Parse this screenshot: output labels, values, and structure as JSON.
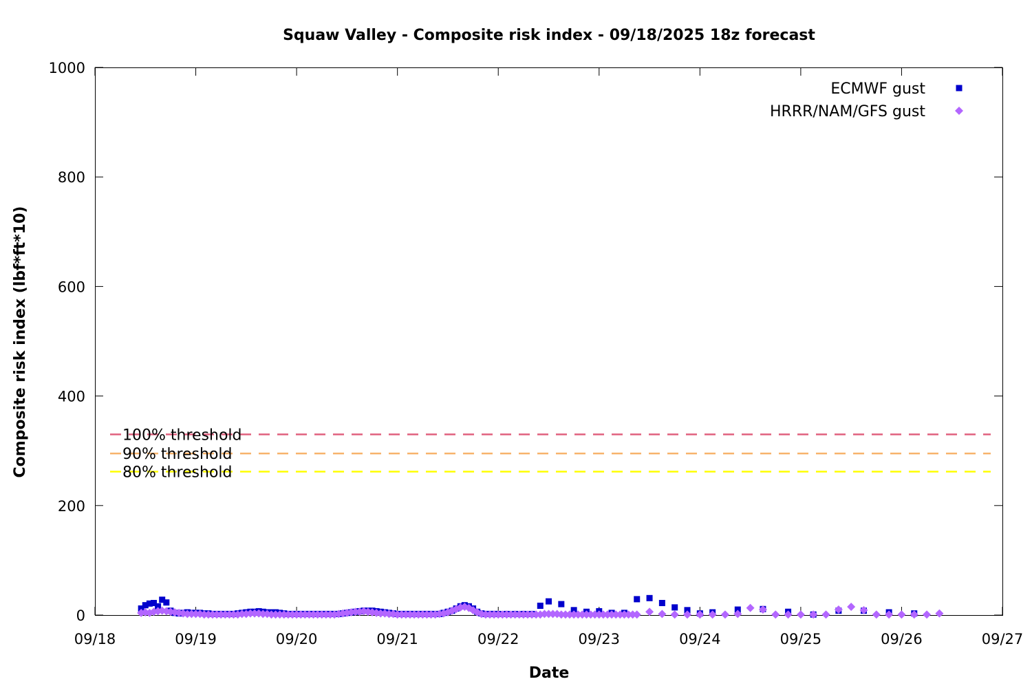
{
  "chart_data": {
    "type": "scatter",
    "title": "Squaw Valley - Composite risk index - 09/18/2025 18z forecast",
    "xlabel": "Date",
    "ylabel": "Composite risk index (lbf*ft*10)",
    "xlim": [
      "2025-09-18",
      "2025-09-27"
    ],
    "ylim": [
      0,
      1000
    ],
    "x_ticks": [
      "09/18",
      "09/19",
      "09/20",
      "09/21",
      "09/22",
      "09/23",
      "09/24",
      "09/25",
      "09/26",
      "09/27"
    ],
    "y_ticks": [
      0,
      200,
      400,
      600,
      800,
      1000
    ],
    "grid": false,
    "legend_position": "top-right",
    "thresholds": [
      {
        "label": "100% threshold",
        "value": 330,
        "color": "#e0607e"
      },
      {
        "label": "90% threshold",
        "value": 295,
        "color": "#f7b36b"
      },
      {
        "label": "80% threshold",
        "value": 262,
        "color": "#ffff00"
      }
    ],
    "series": [
      {
        "name": "ECMWF gust",
        "color": "#0000cc",
        "marker": "square",
        "points": [
          [
            "2025-09-18 11:00",
            12
          ],
          [
            "2025-09-18 12:00",
            18
          ],
          [
            "2025-09-18 13:00",
            21
          ],
          [
            "2025-09-18 14:00",
            22
          ],
          [
            "2025-09-18 15:00",
            16
          ],
          [
            "2025-09-18 16:00",
            28
          ],
          [
            "2025-09-18 17:00",
            23
          ],
          [
            "2025-09-18 18:00",
            8
          ],
          [
            "2025-09-18 19:00",
            4
          ],
          [
            "2025-09-18 20:00",
            3
          ],
          [
            "2025-09-18 21:00",
            4
          ],
          [
            "2025-09-18 22:00",
            5
          ],
          [
            "2025-09-18 23:00",
            4
          ],
          [
            "2025-09-19 00:00",
            4
          ],
          [
            "2025-09-19 01:00",
            4
          ],
          [
            "2025-09-19 02:00",
            3
          ],
          [
            "2025-09-19 03:00",
            3
          ],
          [
            "2025-09-19 04:00",
            2
          ],
          [
            "2025-09-19 05:00",
            2
          ],
          [
            "2025-09-19 06:00",
            2
          ],
          [
            "2025-09-19 07:00",
            2
          ],
          [
            "2025-09-19 08:00",
            2
          ],
          [
            "2025-09-19 09:00",
            2
          ],
          [
            "2025-09-19 10:00",
            3
          ],
          [
            "2025-09-19 11:00",
            4
          ],
          [
            "2025-09-19 12:00",
            5
          ],
          [
            "2025-09-19 13:00",
            6
          ],
          [
            "2025-09-19 14:00",
            6
          ],
          [
            "2025-09-19 15:00",
            7
          ],
          [
            "2025-09-19 16:00",
            6
          ],
          [
            "2025-09-19 17:00",
            5
          ],
          [
            "2025-09-19 18:00",
            5
          ],
          [
            "2025-09-19 19:00",
            5
          ],
          [
            "2025-09-19 20:00",
            4
          ],
          [
            "2025-09-19 21:00",
            3
          ],
          [
            "2025-09-19 22:00",
            2
          ],
          [
            "2025-09-19 23:00",
            2
          ],
          [
            "2025-09-20 00:00",
            2
          ],
          [
            "2025-09-20 01:00",
            2
          ],
          [
            "2025-09-20 02:00",
            2
          ],
          [
            "2025-09-20 03:00",
            2
          ],
          [
            "2025-09-20 04:00",
            2
          ],
          [
            "2025-09-20 05:00",
            2
          ],
          [
            "2025-09-20 06:00",
            2
          ],
          [
            "2025-09-20 07:00",
            2
          ],
          [
            "2025-09-20 08:00",
            2
          ],
          [
            "2025-09-20 09:00",
            2
          ],
          [
            "2025-09-20 10:00",
            2
          ],
          [
            "2025-09-20 11:00",
            3
          ],
          [
            "2025-09-20 12:00",
            4
          ],
          [
            "2025-09-20 13:00",
            5
          ],
          [
            "2025-09-20 14:00",
            6
          ],
          [
            "2025-09-20 15:00",
            7
          ],
          [
            "2025-09-20 16:00",
            8
          ],
          [
            "2025-09-20 17:00",
            8
          ],
          [
            "2025-09-20 18:00",
            8
          ],
          [
            "2025-09-20 19:00",
            7
          ],
          [
            "2025-09-20 20:00",
            6
          ],
          [
            "2025-09-20 21:00",
            5
          ],
          [
            "2025-09-20 22:00",
            4
          ],
          [
            "2025-09-20 23:00",
            3
          ],
          [
            "2025-09-21 00:00",
            2
          ],
          [
            "2025-09-21 01:00",
            2
          ],
          [
            "2025-09-21 02:00",
            2
          ],
          [
            "2025-09-21 03:00",
            2
          ],
          [
            "2025-09-21 04:00",
            2
          ],
          [
            "2025-09-21 05:00",
            2
          ],
          [
            "2025-09-21 06:00",
            2
          ],
          [
            "2025-09-21 07:00",
            2
          ],
          [
            "2025-09-21 08:00",
            2
          ],
          [
            "2025-09-21 09:00",
            2
          ],
          [
            "2025-09-21 10:00",
            2
          ],
          [
            "2025-09-21 11:00",
            4
          ],
          [
            "2025-09-21 12:00",
            6
          ],
          [
            "2025-09-21 13:00",
            8
          ],
          [
            "2025-09-21 14:00",
            12
          ],
          [
            "2025-09-21 15:00",
            16
          ],
          [
            "2025-09-21 16:00",
            18
          ],
          [
            "2025-09-21 17:00",
            16
          ],
          [
            "2025-09-21 18:00",
            12
          ],
          [
            "2025-09-21 19:00",
            6
          ],
          [
            "2025-09-21 20:00",
            3
          ],
          [
            "2025-09-21 21:00",
            2
          ],
          [
            "2025-09-21 22:00",
            2
          ],
          [
            "2025-09-21 23:00",
            2
          ],
          [
            "2025-09-22 00:00",
            2
          ],
          [
            "2025-09-22 02:00",
            2
          ],
          [
            "2025-09-22 04:00",
            2
          ],
          [
            "2025-09-22 06:00",
            2
          ],
          [
            "2025-09-22 08:00",
            2
          ],
          [
            "2025-09-22 10:00",
            17
          ],
          [
            "2025-09-22 12:00",
            25
          ],
          [
            "2025-09-22 15:00",
            20
          ],
          [
            "2025-09-22 18:00",
            9
          ],
          [
            "2025-09-22 21:00",
            6
          ],
          [
            "2025-09-23 00:00",
            7
          ],
          [
            "2025-09-23 03:00",
            4
          ],
          [
            "2025-09-23 06:00",
            4
          ],
          [
            "2025-09-23 09:00",
            29
          ],
          [
            "2025-09-23 12:00",
            31
          ],
          [
            "2025-09-23 15:00",
            22
          ],
          [
            "2025-09-23 18:00",
            14
          ],
          [
            "2025-09-23 21:00",
            9
          ],
          [
            "2025-09-24 00:00",
            3
          ],
          [
            "2025-09-24 03:00",
            5
          ],
          [
            "2025-09-24 09:00",
            10
          ],
          [
            "2025-09-24 15:00",
            11
          ],
          [
            "2025-09-24 21:00",
            6
          ],
          [
            "2025-09-25 03:00",
            1
          ],
          [
            "2025-09-25 09:00",
            8
          ],
          [
            "2025-09-25 15:00",
            8
          ],
          [
            "2025-09-25 21:00",
            5
          ],
          [
            "2025-09-26 03:00",
            3
          ]
        ]
      },
      {
        "name": "HRRR/NAM/GFS gust",
        "color": "#b366ff",
        "marker": "diamond",
        "points": [
          [
            "2025-09-18 11:00",
            4
          ],
          [
            "2025-09-18 12:00",
            5
          ],
          [
            "2025-09-18 13:00",
            4
          ],
          [
            "2025-09-18 14:00",
            6
          ],
          [
            "2025-09-18 15:00",
            7
          ],
          [
            "2025-09-18 16:00",
            8
          ],
          [
            "2025-09-18 17:00",
            7
          ],
          [
            "2025-09-18 18:00",
            6
          ],
          [
            "2025-09-18 19:00",
            5
          ],
          [
            "2025-09-18 20:00",
            4
          ],
          [
            "2025-09-18 21:00",
            3
          ],
          [
            "2025-09-18 22:00",
            2
          ],
          [
            "2025-09-18 23:00",
            2
          ],
          [
            "2025-09-19 00:00",
            2
          ],
          [
            "2025-09-19 01:00",
            2
          ],
          [
            "2025-09-19 02:00",
            1
          ],
          [
            "2025-09-19 03:00",
            1
          ],
          [
            "2025-09-19 04:00",
            1
          ],
          [
            "2025-09-19 05:00",
            1
          ],
          [
            "2025-09-19 06:00",
            1
          ],
          [
            "2025-09-19 07:00",
            1
          ],
          [
            "2025-09-19 08:00",
            1
          ],
          [
            "2025-09-19 09:00",
            1
          ],
          [
            "2025-09-19 10:00",
            1
          ],
          [
            "2025-09-19 11:00",
            2
          ],
          [
            "2025-09-19 12:00",
            2
          ],
          [
            "2025-09-19 13:00",
            3
          ],
          [
            "2025-09-19 14:00",
            3
          ],
          [
            "2025-09-19 15:00",
            3
          ],
          [
            "2025-09-19 16:00",
            2
          ],
          [
            "2025-09-19 17:00",
            2
          ],
          [
            "2025-09-19 18:00",
            1
          ],
          [
            "2025-09-19 19:00",
            1
          ],
          [
            "2025-09-19 20:00",
            1
          ],
          [
            "2025-09-19 21:00",
            1
          ],
          [
            "2025-09-19 22:00",
            1
          ],
          [
            "2025-09-19 23:00",
            1
          ],
          [
            "2025-09-20 00:00",
            1
          ],
          [
            "2025-09-20 01:00",
            1
          ],
          [
            "2025-09-20 02:00",
            1
          ],
          [
            "2025-09-20 03:00",
            1
          ],
          [
            "2025-09-20 04:00",
            1
          ],
          [
            "2025-09-20 05:00",
            1
          ],
          [
            "2025-09-20 06:00",
            1
          ],
          [
            "2025-09-20 07:00",
            1
          ],
          [
            "2025-09-20 08:00",
            1
          ],
          [
            "2025-09-20 09:00",
            1
          ],
          [
            "2025-09-20 10:00",
            2
          ],
          [
            "2025-09-20 11:00",
            3
          ],
          [
            "2025-09-20 12:00",
            4
          ],
          [
            "2025-09-20 13:00",
            5
          ],
          [
            "2025-09-20 14:00",
            6
          ],
          [
            "2025-09-20 15:00",
            6
          ],
          [
            "2025-09-20 16:00",
            7
          ],
          [
            "2025-09-20 17:00",
            6
          ],
          [
            "2025-09-20 18:00",
            5
          ],
          [
            "2025-09-20 19:00",
            4
          ],
          [
            "2025-09-20 20:00",
            3
          ],
          [
            "2025-09-20 21:00",
            3
          ],
          [
            "2025-09-20 22:00",
            2
          ],
          [
            "2025-09-20 23:00",
            2
          ],
          [
            "2025-09-21 00:00",
            1
          ],
          [
            "2025-09-21 01:00",
            1
          ],
          [
            "2025-09-21 02:00",
            1
          ],
          [
            "2025-09-21 03:00",
            1
          ],
          [
            "2025-09-21 04:00",
            1
          ],
          [
            "2025-09-21 05:00",
            1
          ],
          [
            "2025-09-21 06:00",
            1
          ],
          [
            "2025-09-21 07:00",
            1
          ],
          [
            "2025-09-21 08:00",
            1
          ],
          [
            "2025-09-21 09:00",
            1
          ],
          [
            "2025-09-21 10:00",
            2
          ],
          [
            "2025-09-21 11:00",
            3
          ],
          [
            "2025-09-21 12:00",
            5
          ],
          [
            "2025-09-21 13:00",
            8
          ],
          [
            "2025-09-21 14:00",
            11
          ],
          [
            "2025-09-21 15:00",
            14
          ],
          [
            "2025-09-21 16:00",
            15
          ],
          [
            "2025-09-21 17:00",
            13
          ],
          [
            "2025-09-21 18:00",
            9
          ],
          [
            "2025-09-21 19:00",
            5
          ],
          [
            "2025-09-21 20:00",
            2
          ],
          [
            "2025-09-21 21:00",
            1
          ],
          [
            "2025-09-21 22:00",
            1
          ],
          [
            "2025-09-21 23:00",
            1
          ],
          [
            "2025-09-22 00:00",
            1
          ],
          [
            "2025-09-22 01:00",
            1
          ],
          [
            "2025-09-22 02:00",
            1
          ],
          [
            "2025-09-22 03:00",
            1
          ],
          [
            "2025-09-22 04:00",
            1
          ],
          [
            "2025-09-22 05:00",
            1
          ],
          [
            "2025-09-22 06:00",
            1
          ],
          [
            "2025-09-22 07:00",
            1
          ],
          [
            "2025-09-22 08:00",
            1
          ],
          [
            "2025-09-22 09:00",
            1
          ],
          [
            "2025-09-22 10:00",
            1
          ],
          [
            "2025-09-22 11:00",
            2
          ],
          [
            "2025-09-22 12:00",
            2
          ],
          [
            "2025-09-22 13:00",
            2
          ],
          [
            "2025-09-22 14:00",
            2
          ],
          [
            "2025-09-22 15:00",
            1
          ],
          [
            "2025-09-22 16:00",
            1
          ],
          [
            "2025-09-22 17:00",
            1
          ],
          [
            "2025-09-22 18:00",
            1
          ],
          [
            "2025-09-22 19:00",
            1
          ],
          [
            "2025-09-22 20:00",
            1
          ],
          [
            "2025-09-22 21:00",
            1
          ],
          [
            "2025-09-22 22:00",
            1
          ],
          [
            "2025-09-22 23:00",
            1
          ],
          [
            "2025-09-23 00:00",
            1
          ],
          [
            "2025-09-23 01:00",
            1
          ],
          [
            "2025-09-23 02:00",
            1
          ],
          [
            "2025-09-23 03:00",
            1
          ],
          [
            "2025-09-23 04:00",
            1
          ],
          [
            "2025-09-23 05:00",
            1
          ],
          [
            "2025-09-23 06:00",
            1
          ],
          [
            "2025-09-23 07:00",
            1
          ],
          [
            "2025-09-23 08:00",
            1
          ],
          [
            "2025-09-23 09:00",
            1
          ],
          [
            "2025-09-23 12:00",
            6
          ],
          [
            "2025-09-23 15:00",
            2
          ],
          [
            "2025-09-23 18:00",
            1
          ],
          [
            "2025-09-23 21:00",
            1
          ],
          [
            "2025-09-24 00:00",
            1
          ],
          [
            "2025-09-24 03:00",
            1
          ],
          [
            "2025-09-24 06:00",
            1
          ],
          [
            "2025-09-24 09:00",
            2
          ],
          [
            "2025-09-24 12:00",
            13
          ],
          [
            "2025-09-24 15:00",
            10
          ],
          [
            "2025-09-24 18:00",
            1
          ],
          [
            "2025-09-24 21:00",
            1
          ],
          [
            "2025-09-25 00:00",
            1
          ],
          [
            "2025-09-25 03:00",
            1
          ],
          [
            "2025-09-25 06:00",
            1
          ],
          [
            "2025-09-25 09:00",
            10
          ],
          [
            "2025-09-25 12:00",
            15
          ],
          [
            "2025-09-25 15:00",
            9
          ],
          [
            "2025-09-25 18:00",
            1
          ],
          [
            "2025-09-25 21:00",
            1
          ],
          [
            "2025-09-26 00:00",
            1
          ],
          [
            "2025-09-26 03:00",
            1
          ],
          [
            "2025-09-26 06:00",
            1
          ],
          [
            "2025-09-26 09:00",
            3
          ]
        ]
      }
    ]
  }
}
